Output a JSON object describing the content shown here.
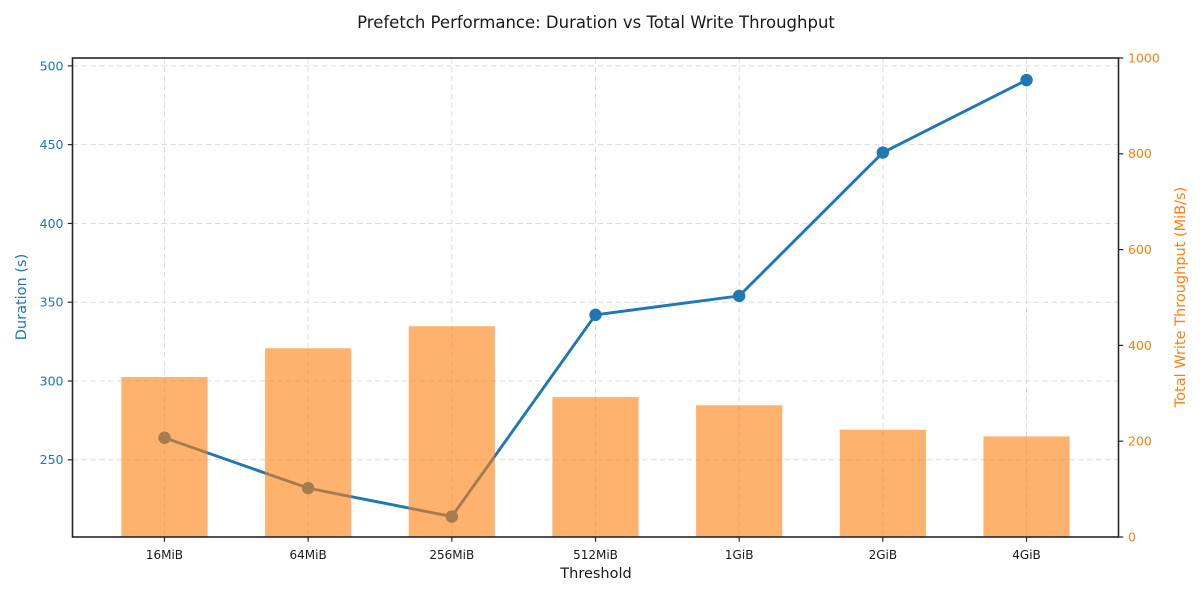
{
  "colors": {
    "duration_line": "#1f77b4",
    "throughput_bar": "#ff7f0e",
    "grid": "#dcdcdc",
    "spine": "#262626",
    "title_text": "#1a1a1a",
    "xtick_text": "#1a1a1a"
  },
  "chart_data": {
    "type": "combo",
    "title": "Prefetch Performance: Duration vs Total Write Throughput",
    "xlabel": "Threshold",
    "ylabel_left": "Duration (s)",
    "ylabel_right": "Total Write Throughput (MiB/s)",
    "categories": [
      "16MiB",
      "64MiB",
      "256MiB",
      "512MiB",
      "1GiB",
      "2GiB",
      "4GiB"
    ],
    "series": [
      {
        "name": "Duration",
        "type": "line",
        "axis": "left",
        "color": "#1f77b4",
        "values": [
          264,
          232,
          214,
          342,
          354,
          445,
          491
        ]
      },
      {
        "name": "Total Write Throughput",
        "type": "bar",
        "axis": "right",
        "color": "#ff7f0e",
        "opacity": 0.6,
        "values": [
          334,
          394,
          440,
          292,
          275,
          224,
          210
        ]
      }
    ],
    "ylim_left": [
      201,
      505
    ],
    "ylim_right": [
      0,
      1000
    ],
    "yticks_left": [
      250,
      300,
      350,
      400,
      450,
      500
    ],
    "yticks_right": [
      0,
      200,
      400,
      600,
      800,
      1000
    ],
    "grid": true,
    "grid_style": "dashed",
    "legend": "none"
  }
}
